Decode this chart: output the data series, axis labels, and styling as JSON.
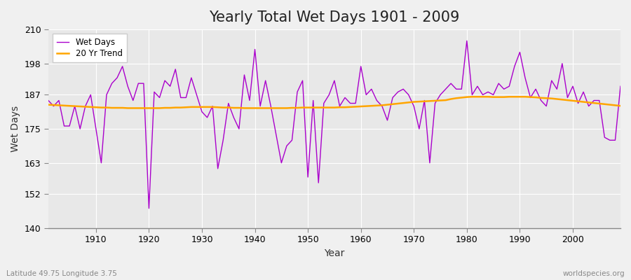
{
  "title": "Yearly Total Wet Days 1901 - 2009",
  "xlabel": "Year",
  "ylabel": "Wet Days",
  "lat_lon_label": "Latitude 49.75 Longitude 3.75",
  "watermark": "worldspecies.org",
  "ylim": [
    140,
    210
  ],
  "yticks": [
    140,
    152,
    163,
    175,
    187,
    198,
    210
  ],
  "line_color": "#AA00CC",
  "trend_color": "#FFA500",
  "plot_bg_color": "#E8E8E8",
  "fig_bg_color": "#F0F0F0",
  "grid_color": "#FFFFFF",
  "years": [
    1901,
    1902,
    1903,
    1904,
    1905,
    1906,
    1907,
    1908,
    1909,
    1910,
    1911,
    1912,
    1913,
    1914,
    1915,
    1916,
    1917,
    1918,
    1919,
    1920,
    1921,
    1922,
    1923,
    1924,
    1925,
    1926,
    1927,
    1928,
    1929,
    1930,
    1931,
    1932,
    1933,
    1934,
    1935,
    1936,
    1937,
    1938,
    1939,
    1940,
    1941,
    1942,
    1943,
    1944,
    1945,
    1946,
    1947,
    1948,
    1949,
    1950,
    1951,
    1952,
    1953,
    1954,
    1955,
    1956,
    1957,
    1958,
    1959,
    1960,
    1961,
    1962,
    1963,
    1964,
    1965,
    1966,
    1967,
    1968,
    1969,
    1970,
    1971,
    1972,
    1973,
    1974,
    1975,
    1976,
    1977,
    1978,
    1979,
    1980,
    1981,
    1982,
    1983,
    1984,
    1985,
    1986,
    1987,
    1988,
    1989,
    1990,
    1991,
    1992,
    1993,
    1994,
    1995,
    1996,
    1997,
    1998,
    1999,
    2000,
    2001,
    2002,
    2003,
    2004,
    2005,
    2006,
    2007,
    2008,
    2009
  ],
  "wet_days": [
    185,
    183,
    185,
    176,
    176,
    183,
    175,
    183,
    187,
    175,
    163,
    187,
    191,
    193,
    197,
    190,
    185,
    191,
    191,
    147,
    188,
    186,
    192,
    190,
    196,
    186,
    186,
    193,
    187,
    181,
    179,
    183,
    161,
    171,
    184,
    179,
    175,
    194,
    185,
    203,
    183,
    192,
    183,
    173,
    163,
    169,
    171,
    188,
    192,
    158,
    185,
    156,
    184,
    187,
    192,
    183,
    186,
    184,
    184,
    197,
    187,
    189,
    185,
    183,
    178,
    186,
    188,
    189,
    187,
    183,
    175,
    185,
    163,
    184,
    187,
    189,
    191,
    189,
    189,
    206,
    187,
    190,
    187,
    188,
    187,
    191,
    189,
    190,
    197,
    202,
    193,
    186,
    189,
    185,
    183,
    192,
    189,
    198,
    186,
    190,
    184,
    188,
    183,
    185,
    185,
    172,
    171,
    171,
    190
  ],
  "trend": [
    183.5,
    183.4,
    183.3,
    183.2,
    183.1,
    183.0,
    182.9,
    182.8,
    182.7,
    182.6,
    182.5,
    182.5,
    182.4,
    182.4,
    182.4,
    182.3,
    182.3,
    182.3,
    182.3,
    182.3,
    182.3,
    182.3,
    182.4,
    182.4,
    182.5,
    182.5,
    182.6,
    182.7,
    182.7,
    182.7,
    182.7,
    182.7,
    182.6,
    182.5,
    182.5,
    182.4,
    182.4,
    182.3,
    182.3,
    182.3,
    182.3,
    182.3,
    182.3,
    182.3,
    182.3,
    182.3,
    182.4,
    182.4,
    182.5,
    182.5,
    182.5,
    182.5,
    182.5,
    182.5,
    182.5,
    182.6,
    182.6,
    182.7,
    182.8,
    182.9,
    183.0,
    183.1,
    183.2,
    183.3,
    183.5,
    183.7,
    183.9,
    184.1,
    184.3,
    184.5,
    184.6,
    184.7,
    184.8,
    184.9,
    185.0,
    185.1,
    185.5,
    185.8,
    186.0,
    186.2,
    186.3,
    186.3,
    186.3,
    186.3,
    186.2,
    186.2,
    186.2,
    186.3,
    186.3,
    186.3,
    186.3,
    186.2,
    186.1,
    185.9,
    185.8,
    185.7,
    185.5,
    185.3,
    185.1,
    184.9,
    184.7,
    184.5,
    184.3,
    184.1,
    183.9,
    183.7,
    183.5,
    183.3,
    183.1
  ]
}
